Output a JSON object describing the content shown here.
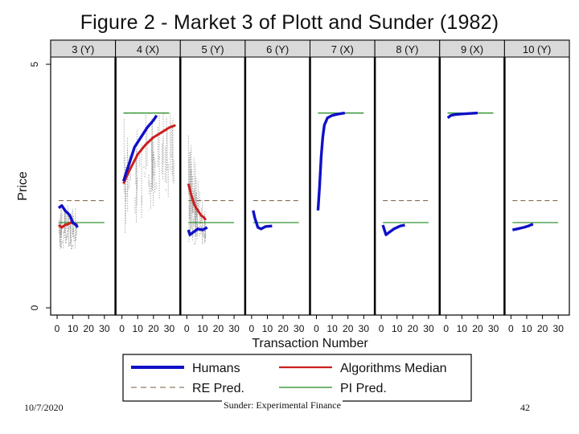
{
  "slide": {
    "date": "10/7/2020",
    "footer": "Sunder: Experimental Finance",
    "page_number": "42"
  },
  "chart_data": {
    "type": "line",
    "title": "Figure 2 - Market 3 of Plott and Sunder (1982)",
    "xlabel": "Transaction Number",
    "ylabel": "Price",
    "ylim": [
      0,
      5
    ],
    "yticks": [
      "0",
      "5"
    ],
    "xlim": [
      0,
      35
    ],
    "xticks": [
      "0",
      "10",
      "20",
      "30"
    ],
    "legend_position": "bottom",
    "legend": [
      {
        "name": "Humans",
        "color": "#1010c8",
        "style": "thick"
      },
      {
        "name": "Algorithms Median",
        "color": "#cc1f1f",
        "style": "solid"
      },
      {
        "name": "RE Pred.",
        "color": "#7a5a3a",
        "style": "dashed"
      },
      {
        "name": "PI Pred.",
        "color": "#1f8a1f",
        "style": "solid"
      }
    ],
    "panels": [
      {
        "label": "3 (Y)",
        "re_pred": 2.2,
        "pi_pred": 1.75,
        "humans": [
          [
            1,
            2.05
          ],
          [
            3,
            2.1
          ],
          [
            5,
            2.0
          ],
          [
            8,
            1.9
          ],
          [
            10,
            1.75
          ],
          [
            12,
            1.7
          ],
          [
            13,
            1.65
          ]
        ],
        "algorithms": [
          [
            1,
            1.7
          ],
          [
            3,
            1.65
          ],
          [
            5,
            1.7
          ],
          [
            7,
            1.72
          ],
          [
            9,
            1.75
          ],
          [
            11,
            1.72
          ],
          [
            13,
            1.7
          ]
        ],
        "band": [
          1,
          13,
          1.2,
          2.1
        ]
      },
      {
        "label": "4 (X)",
        "re_pred": 4.0,
        "pi_pred": 4.0,
        "humans": [
          [
            1,
            2.6
          ],
          [
            3,
            2.8
          ],
          [
            5,
            3.0
          ],
          [
            8,
            3.3
          ],
          [
            12,
            3.5
          ],
          [
            16,
            3.7
          ],
          [
            20,
            3.85
          ],
          [
            22,
            3.95
          ]
        ],
        "algorithms": [
          [
            1,
            2.55
          ],
          [
            3,
            2.7
          ],
          [
            6,
            2.9
          ],
          [
            10,
            3.15
          ],
          [
            15,
            3.35
          ],
          [
            20,
            3.5
          ],
          [
            25,
            3.6
          ],
          [
            30,
            3.7
          ],
          [
            34,
            3.75
          ]
        ],
        "band": [
          1,
          34,
          1.5,
          4.1
        ]
      },
      {
        "label": "5 (Y)",
        "re_pred": 2.2,
        "pi_pred": 1.75,
        "humans": [
          [
            1,
            1.6
          ],
          [
            2,
            1.5
          ],
          [
            4,
            1.55
          ],
          [
            7,
            1.62
          ],
          [
            10,
            1.6
          ],
          [
            13,
            1.65
          ]
        ],
        "algorithms": [
          [
            1,
            2.55
          ],
          [
            3,
            2.3
          ],
          [
            5,
            2.1
          ],
          [
            7,
            2.0
          ],
          [
            9,
            1.9
          ],
          [
            11,
            1.85
          ],
          [
            12,
            1.8
          ]
        ],
        "band": [
          1,
          12,
          1.3,
          3.6
        ]
      },
      {
        "label": "6 (Y)",
        "re_pred": 2.2,
        "pi_pred": 1.75,
        "humans": [
          [
            1,
            2.0
          ],
          [
            2,
            1.85
          ],
          [
            3,
            1.75
          ],
          [
            4,
            1.65
          ],
          [
            6,
            1.62
          ],
          [
            9,
            1.67
          ],
          [
            13,
            1.68
          ]
        ],
        "algorithms": [],
        "band": null
      },
      {
        "label": "7 (X)",
        "re_pred": 4.0,
        "pi_pred": 4.0,
        "humans": [
          [
            1,
            2.0
          ],
          [
            2,
            2.5
          ],
          [
            3,
            3.1
          ],
          [
            4,
            3.5
          ],
          [
            5,
            3.75
          ],
          [
            7,
            3.9
          ],
          [
            10,
            3.95
          ],
          [
            14,
            3.98
          ],
          [
            18,
            4.0
          ]
        ],
        "algorithms": [],
        "band": null
      },
      {
        "label": "8 (Y)",
        "re_pred": 2.2,
        "pi_pred": 1.75,
        "humans": [
          [
            1,
            1.7
          ],
          [
            2,
            1.6
          ],
          [
            3,
            1.5
          ],
          [
            5,
            1.55
          ],
          [
            8,
            1.62
          ],
          [
            12,
            1.68
          ],
          [
            15,
            1.7
          ]
        ],
        "algorithms": [],
        "band": null
      },
      {
        "label": "9 (X)",
        "re_pred": 4.0,
        "pi_pred": 4.0,
        "humans": [
          [
            1,
            3.9
          ],
          [
            3,
            3.95
          ],
          [
            6,
            3.97
          ],
          [
            10,
            3.98
          ],
          [
            15,
            3.99
          ],
          [
            20,
            4.0
          ]
        ],
        "algorithms": [],
        "band": null
      },
      {
        "label": "10 (Y)",
        "re_pred": 2.2,
        "pi_pred": 1.75,
        "humans": [
          [
            1,
            1.6
          ],
          [
            4,
            1.62
          ],
          [
            8,
            1.65
          ],
          [
            11,
            1.68
          ],
          [
            14,
            1.72
          ]
        ],
        "algorithms": [],
        "band": null
      }
    ]
  }
}
